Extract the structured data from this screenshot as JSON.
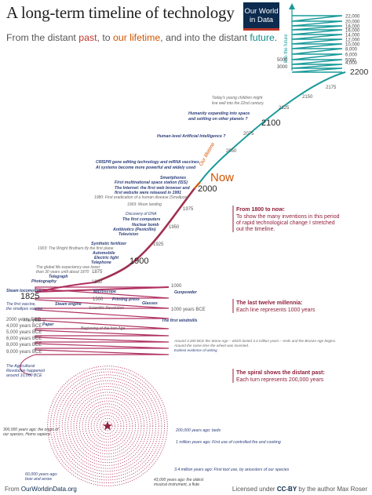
{
  "header": {
    "title": "A long-term timeline of technology",
    "subtitle_1": "From the distant ",
    "subtitle_past": "past",
    "subtitle_2": ", to ",
    "subtitle_life": "our lifetime",
    "subtitle_3": ", and into the distant ",
    "subtitle_fut": "future",
    "subtitle_4": ".",
    "logo_line1": "Our World",
    "logo_line2": "in Data"
  },
  "footer": {
    "source_prefix": "From ",
    "source_link": "OurWorldinData.org",
    "license_prefix": "Licensed under ",
    "license": "CC-BY",
    "license_suffix": " by the author Max Roser"
  },
  "colors": {
    "future": "#1a9a9a",
    "modern": "#a03050",
    "ancient": "#b03060",
    "accent_now": "#d35400",
    "logo_bg": "#0c2b4e"
  },
  "chart_data": {
    "type": "spiral timeline",
    "future_label": "Into the future",
    "future_years": [
      "22,000",
      "20,000",
      "18,000",
      "16,000",
      "14,000",
      "12,000",
      "10,000",
      "8,000",
      "6,000",
      "5000",
      "4,000",
      "3000",
      "2200"
    ],
    "main_years": [
      {
        "label": "2175"
      },
      {
        "label": "2150"
      },
      {
        "label": "2125"
      },
      {
        "label": "2100"
      },
      {
        "label": "2075"
      },
      {
        "label": "2050"
      },
      {
        "label": "Now"
      },
      {
        "label": "2000"
      },
      {
        "label": "1975"
      },
      {
        "label": "1950"
      },
      {
        "label": "1925"
      },
      {
        "label": "1900"
      },
      {
        "label": "1875"
      },
      {
        "label": "1850"
      },
      {
        "label": "1825"
      },
      {
        "label": "1800"
      },
      {
        "label": "1700"
      },
      {
        "label": "1600"
      },
      {
        "label": "1500"
      },
      {
        "label": "1000"
      },
      {
        "label": "The year 0"
      },
      {
        "label": "1000 years BCE"
      },
      {
        "label": "2000 years BCE"
      },
      {
        "label": "4,000 years BCE"
      },
      {
        "label": "5,000 years BCE"
      },
      {
        "label": "6,000 years BCE"
      },
      {
        "label": "8,000 years BCE"
      },
      {
        "label": "9,000 years BCE"
      }
    ],
    "lifetime_label": "Our lifetime",
    "events": [
      {
        "text": "Today's young children might"
      },
      {
        "text": "live well into the 22nd century."
      },
      {
        "text": "Humanity expanding into space"
      },
      {
        "text": "and settling on other planets ?"
      },
      {
        "text": "Human-level Artificial Intelligence ?"
      },
      {
        "text": "CRISPR gene editing technology and mRNA vaccines"
      },
      {
        "text": "AI systems become more powerful and widely used"
      },
      {
        "text": "Smartphones"
      },
      {
        "text": "First multinational space station (ISS)"
      },
      {
        "text": "The Internet: the first web browser and"
      },
      {
        "text": "first website were released in 1991"
      },
      {
        "text": "1980: First eradication of a human disease (Smallpox)"
      },
      {
        "text": "1969: Moon landing"
      },
      {
        "text": "Discovery of DNA"
      },
      {
        "text": "The first computers"
      },
      {
        "text": "Nuclear bomb"
      },
      {
        "text": "Antibiotics (Penicillin)"
      },
      {
        "text": "Television"
      },
      {
        "text": "Synthetic fertilizer"
      },
      {
        "text": "1903: The Wright Brothers fly the first plane"
      },
      {
        "text": "Automobile"
      },
      {
        "text": "Electric light"
      },
      {
        "text": "Telephone"
      },
      {
        "text": "The global life expectancy was lower"
      },
      {
        "text": "than 30 years until about 1870"
      },
      {
        "text": "Telegraph"
      },
      {
        "text": "Photography"
      },
      {
        "text": "Steam locomotive"
      },
      {
        "text": "The first vaccine,"
      },
      {
        "text": "the smallpox vaccine"
      },
      {
        "text": "Steam engine"
      },
      {
        "text": "Microscope"
      },
      {
        "text": "Printing press"
      },
      {
        "text": "Glasses"
      },
      {
        "text": "Scientific Revolution"
      },
      {
        "text": "Gunpowder"
      },
      {
        "text": "The first windmills"
      },
      {
        "text": "Paper"
      },
      {
        "text": "Beginning of the Iron Age"
      },
      {
        "text": "Around 3,300 BCE the Stone Age – which lasted 3.3 million years – ends and the Bronze Age begins."
      },
      {
        "text": "Around the same time the wheel was invented."
      },
      {
        "text": "Earliest evidence of writing"
      },
      {
        "text": "The Agricultural"
      },
      {
        "text": "Revolution happened"
      },
      {
        "text": "around 10,000 BCE"
      },
      {
        "text": "300,000 years ago: the origin of"
      },
      {
        "text": "our species, Homo sapiens"
      },
      {
        "text": "200,000 years ago: beds"
      },
      {
        "text": "1 million years ago: First use of controlled fire and cooking"
      },
      {
        "text": "3.4 million years ago: First tool use, by ancestors of our species"
      },
      {
        "text": "60,000 years ago:"
      },
      {
        "text": "bow and arrow"
      },
      {
        "text": "43,000 years ago: the oldest"
      },
      {
        "text": "musical instrument, a flute"
      }
    ],
    "boxes": [
      {
        "title": "From 1800 to now:",
        "lines": [
          "To show the many inventions in this period",
          "of rapid technological change I stretched",
          "out the timeline."
        ]
      },
      {
        "title": "The last twelve millennia:",
        "lines": [
          "Each line represents 1000 years"
        ]
      },
      {
        "title": "The spiral shows the distant past:",
        "lines": [
          "Each turn represents 200,000 years"
        ]
      }
    ]
  }
}
